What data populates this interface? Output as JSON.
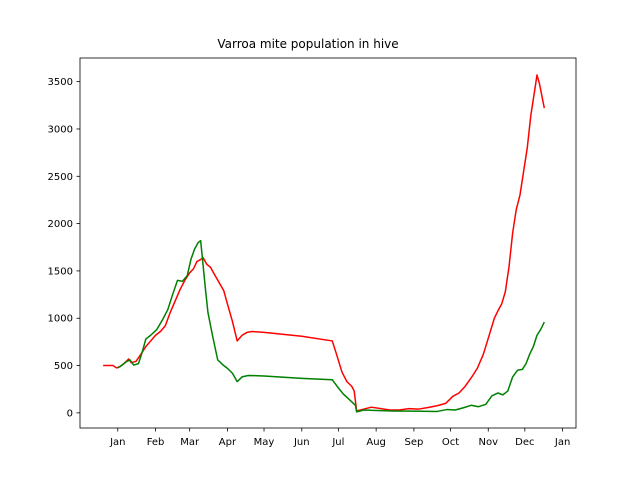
{
  "chart_data": {
    "type": "line",
    "title": "Varroa mite population in hive",
    "xlabel": "",
    "ylabel": "",
    "x_axis": {
      "type": "date",
      "range": [
        "2022-12-01",
        "2024-01-12"
      ],
      "ticks": [
        {
          "date": "2023-01-01",
          "label": "Jan"
        },
        {
          "date": "2023-02-01",
          "label": "Feb"
        },
        {
          "date": "2023-03-01",
          "label": "Mar"
        },
        {
          "date": "2023-04-01",
          "label": "Apr"
        },
        {
          "date": "2023-05-01",
          "label": "May"
        },
        {
          "date": "2023-06-01",
          "label": "Jun"
        },
        {
          "date": "2023-07-01",
          "label": "Jul"
        },
        {
          "date": "2023-08-01",
          "label": "Aug"
        },
        {
          "date": "2023-09-01",
          "label": "Sep"
        },
        {
          "date": "2023-10-01",
          "label": "Oct"
        },
        {
          "date": "2023-11-01",
          "label": "Nov"
        },
        {
          "date": "2023-12-01",
          "label": "Dec"
        },
        {
          "date": "2024-01-01",
          "label": "Jan"
        }
      ]
    },
    "y_axis": {
      "range": [
        -160,
        3750
      ],
      "ticks": [
        0,
        500,
        1000,
        1500,
        2000,
        2500,
        3000,
        3500
      ]
    },
    "grid": false,
    "legend": "none",
    "series": [
      {
        "color": "#ff0000",
        "points": [
          [
            "2022-12-20",
            500
          ],
          [
            "2022-12-28",
            500
          ],
          [
            "2022-12-31",
            475
          ],
          [
            "2023-01-03",
            490
          ],
          [
            "2023-01-06",
            520
          ],
          [
            "2023-01-10",
            570
          ],
          [
            "2023-01-12",
            530
          ],
          [
            "2023-01-16",
            545
          ],
          [
            "2023-01-20",
            620
          ],
          [
            "2023-01-24",
            700
          ],
          [
            "2023-01-28",
            760
          ],
          [
            "2023-02-01",
            820
          ],
          [
            "2023-02-05",
            860
          ],
          [
            "2023-02-09",
            920
          ],
          [
            "2023-02-13",
            1060
          ],
          [
            "2023-02-17",
            1180
          ],
          [
            "2023-02-21",
            1300
          ],
          [
            "2023-02-25",
            1400
          ],
          [
            "2023-03-01",
            1480
          ],
          [
            "2023-03-04",
            1520
          ],
          [
            "2023-03-07",
            1600
          ],
          [
            "2023-03-10",
            1620
          ],
          [
            "2023-03-12",
            1640
          ],
          [
            "2023-03-15",
            1570
          ],
          [
            "2023-03-18",
            1540
          ],
          [
            "2023-03-21",
            1470
          ],
          [
            "2023-03-25",
            1380
          ],
          [
            "2023-03-29",
            1290
          ],
          [
            "2023-04-01",
            1150
          ],
          [
            "2023-04-05",
            970
          ],
          [
            "2023-04-09",
            760
          ],
          [
            "2023-04-13",
            820
          ],
          [
            "2023-04-17",
            850
          ],
          [
            "2023-04-21",
            860
          ],
          [
            "2023-05-01",
            850
          ],
          [
            "2023-06-01",
            810
          ],
          [
            "2023-06-26",
            760
          ],
          [
            "2023-06-29",
            640
          ],
          [
            "2023-07-04",
            430
          ],
          [
            "2023-07-08",
            330
          ],
          [
            "2023-07-12",
            280
          ],
          [
            "2023-07-14",
            230
          ],
          [
            "2023-07-16",
            20
          ],
          [
            "2023-07-22",
            40
          ],
          [
            "2023-07-28",
            60
          ],
          [
            "2023-08-05",
            45
          ],
          [
            "2023-08-12",
            30
          ],
          [
            "2023-08-20",
            30
          ],
          [
            "2023-08-28",
            45
          ],
          [
            "2023-09-05",
            40
          ],
          [
            "2023-09-12",
            55
          ],
          [
            "2023-09-20",
            75
          ],
          [
            "2023-09-27",
            100
          ],
          [
            "2023-10-03",
            175
          ],
          [
            "2023-10-08",
            210
          ],
          [
            "2023-10-13",
            280
          ],
          [
            "2023-10-18",
            370
          ],
          [
            "2023-10-23",
            470
          ],
          [
            "2023-10-28",
            620
          ],
          [
            "2023-11-02",
            830
          ],
          [
            "2023-11-06",
            1000
          ],
          [
            "2023-11-09",
            1080
          ],
          [
            "2023-11-12",
            1150
          ],
          [
            "2023-11-15",
            1280
          ],
          [
            "2023-11-18",
            1540
          ],
          [
            "2023-11-21",
            1900
          ],
          [
            "2023-11-24",
            2150
          ],
          [
            "2023-11-27",
            2300
          ],
          [
            "2023-11-30",
            2550
          ],
          [
            "2023-12-03",
            2800
          ],
          [
            "2023-12-06",
            3150
          ],
          [
            "2023-12-09",
            3400
          ],
          [
            "2023-12-11",
            3570
          ],
          [
            "2023-12-13",
            3480
          ],
          [
            "2023-12-15",
            3350
          ],
          [
            "2023-12-17",
            3220
          ]
        ]
      },
      {
        "color": "#008000",
        "points": [
          [
            "2023-01-01",
            475
          ],
          [
            "2023-01-04",
            500
          ],
          [
            "2023-01-08",
            540
          ],
          [
            "2023-01-11",
            560
          ],
          [
            "2023-01-14",
            505
          ],
          [
            "2023-01-18",
            520
          ],
          [
            "2023-01-21",
            640
          ],
          [
            "2023-01-24",
            780
          ],
          [
            "2023-01-28",
            820
          ],
          [
            "2023-02-02",
            880
          ],
          [
            "2023-02-07",
            990
          ],
          [
            "2023-02-11",
            1090
          ],
          [
            "2023-02-15",
            1250
          ],
          [
            "2023-02-19",
            1400
          ],
          [
            "2023-02-23",
            1390
          ],
          [
            "2023-02-27",
            1450
          ],
          [
            "2023-03-02",
            1620
          ],
          [
            "2023-03-05",
            1730
          ],
          [
            "2023-03-08",
            1800
          ],
          [
            "2023-03-10",
            1820
          ],
          [
            "2023-03-12",
            1560
          ],
          [
            "2023-03-14",
            1300
          ],
          [
            "2023-03-16",
            1060
          ],
          [
            "2023-03-20",
            800
          ],
          [
            "2023-03-24",
            560
          ],
          [
            "2023-03-28",
            510
          ],
          [
            "2023-04-01",
            470
          ],
          [
            "2023-04-05",
            420
          ],
          [
            "2023-04-09",
            330
          ],
          [
            "2023-04-13",
            380
          ],
          [
            "2023-04-18",
            395
          ],
          [
            "2023-05-01",
            390
          ],
          [
            "2023-06-01",
            365
          ],
          [
            "2023-06-26",
            350
          ],
          [
            "2023-06-30",
            280
          ],
          [
            "2023-07-05",
            200
          ],
          [
            "2023-07-10",
            140
          ],
          [
            "2023-07-15",
            80
          ],
          [
            "2023-07-16",
            10
          ],
          [
            "2023-07-22",
            30
          ],
          [
            "2023-08-01",
            25
          ],
          [
            "2023-08-15",
            20
          ],
          [
            "2023-09-01",
            18
          ],
          [
            "2023-09-20",
            15
          ],
          [
            "2023-09-28",
            35
          ],
          [
            "2023-10-05",
            30
          ],
          [
            "2023-10-12",
            55
          ],
          [
            "2023-10-18",
            80
          ],
          [
            "2023-10-24",
            65
          ],
          [
            "2023-10-30",
            90
          ],
          [
            "2023-11-04",
            180
          ],
          [
            "2023-11-09",
            210
          ],
          [
            "2023-11-13",
            190
          ],
          [
            "2023-11-17",
            230
          ],
          [
            "2023-11-21",
            380
          ],
          [
            "2023-11-25",
            450
          ],
          [
            "2023-11-29",
            460
          ],
          [
            "2023-12-02",
            520
          ],
          [
            "2023-12-05",
            620
          ],
          [
            "2023-12-08",
            700
          ],
          [
            "2023-12-11",
            820
          ],
          [
            "2023-12-14",
            880
          ],
          [
            "2023-12-17",
            960
          ]
        ]
      }
    ]
  }
}
